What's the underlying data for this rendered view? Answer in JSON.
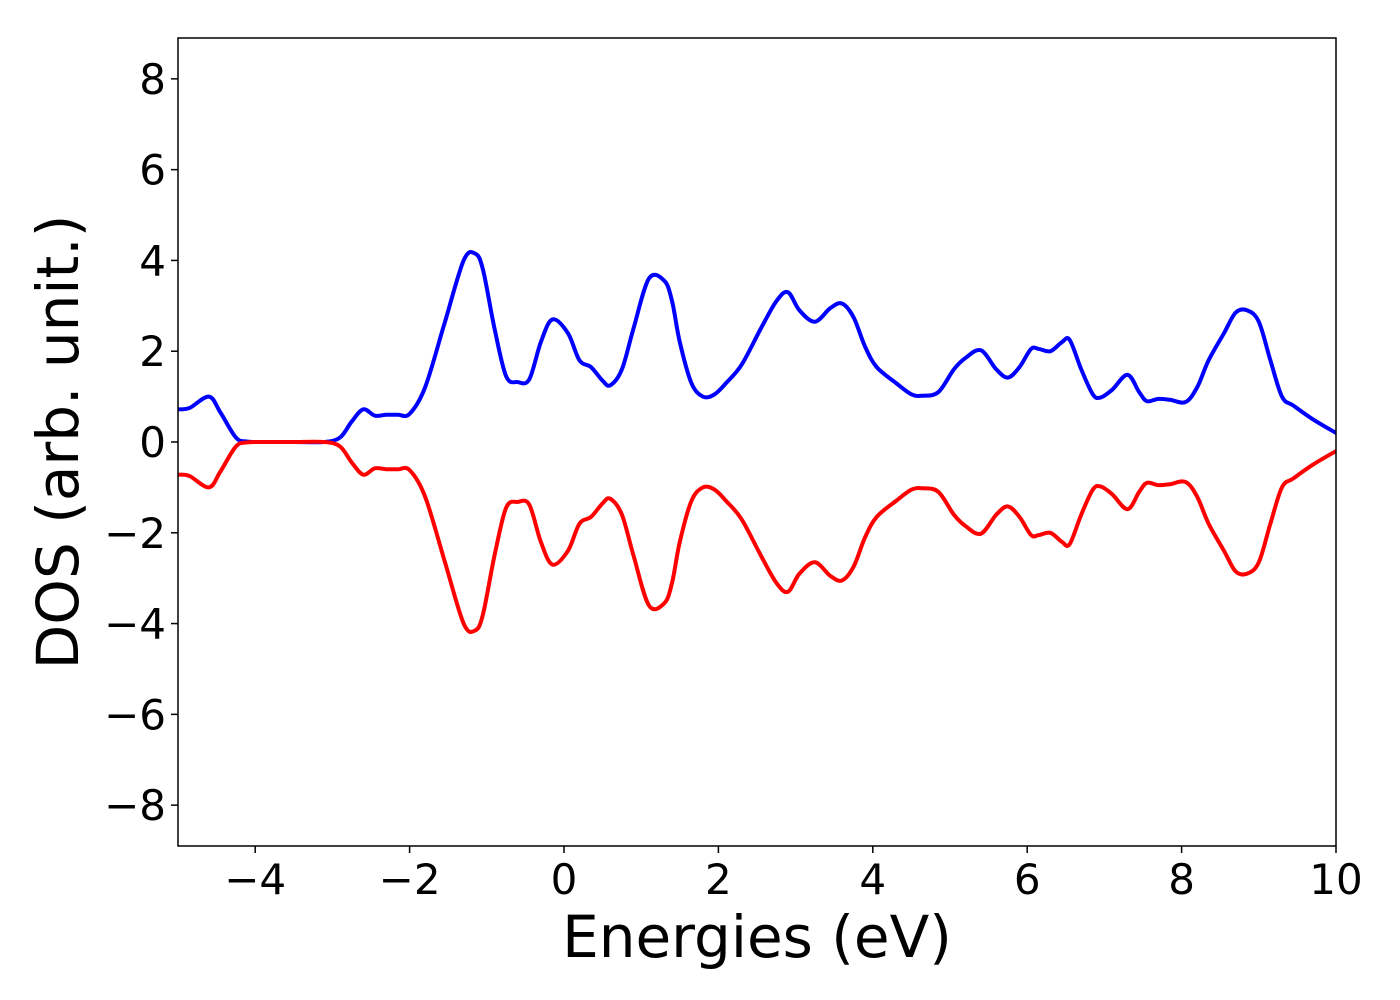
{
  "chart_data": {
    "type": "line",
    "title": "",
    "xlabel": "Energies (eV)",
    "ylabel": "DOS (arb. unit.)",
    "xlim": [
      -5,
      10
    ],
    "ylim": [
      -8.9,
      8.9
    ],
    "xticks": [
      -4,
      -2,
      0,
      2,
      4,
      6,
      8,
      10
    ],
    "yticks": [
      -8,
      -6,
      -4,
      -2,
      0,
      2,
      4,
      6,
      8
    ],
    "grid": false,
    "legend": "none",
    "series": [
      {
        "color": "#0000ff",
        "x": [
          -5.0,
          -4.85,
          -4.6,
          -4.45,
          -4.25,
          -4.1,
          -3.8,
          -3.5,
          -3.1,
          -2.9,
          -2.75,
          -2.6,
          -2.45,
          -2.3,
          -2.15,
          -2.0,
          -1.8,
          -1.55,
          -1.3,
          -1.15,
          -1.05,
          -0.9,
          -0.75,
          -0.6,
          -0.45,
          -0.3,
          -0.15,
          0.05,
          0.2,
          0.35,
          0.5,
          0.6,
          0.75,
          0.9,
          1.1,
          1.3,
          1.4,
          1.5,
          1.65,
          1.8,
          1.95,
          2.1,
          2.3,
          2.55,
          2.75,
          2.9,
          3.05,
          3.25,
          3.45,
          3.6,
          3.75,
          3.9,
          4.05,
          4.3,
          4.5,
          4.65,
          4.85,
          5.05,
          5.2,
          5.4,
          5.6,
          5.75,
          5.9,
          6.05,
          6.15,
          6.3,
          6.45,
          6.55,
          6.7,
          6.85,
          6.95,
          7.1,
          7.3,
          7.45,
          7.55,
          7.7,
          7.85,
          8.05,
          8.2,
          8.35,
          8.55,
          8.7,
          8.85,
          9.0,
          9.15,
          9.3,
          9.45,
          9.7,
          10.0
        ],
        "y": [
          0.72,
          0.75,
          1.0,
          0.65,
          0.1,
          0.01,
          0.0,
          0.0,
          0.0,
          0.1,
          0.45,
          0.72,
          0.58,
          0.6,
          0.6,
          0.62,
          1.2,
          2.6,
          4.0,
          4.15,
          3.8,
          2.5,
          1.45,
          1.32,
          1.38,
          2.2,
          2.7,
          2.4,
          1.8,
          1.65,
          1.35,
          1.25,
          1.6,
          2.5,
          3.6,
          3.55,
          3.1,
          2.2,
          1.3,
          1.0,
          1.05,
          1.3,
          1.7,
          2.5,
          3.1,
          3.3,
          2.9,
          2.65,
          2.95,
          3.05,
          2.75,
          2.1,
          1.65,
          1.3,
          1.05,
          1.02,
          1.1,
          1.6,
          1.85,
          2.02,
          1.6,
          1.42,
          1.65,
          2.05,
          2.05,
          2.0,
          2.2,
          2.25,
          1.6,
          1.05,
          0.98,
          1.15,
          1.48,
          1.1,
          0.9,
          0.95,
          0.93,
          0.88,
          1.2,
          1.8,
          2.4,
          2.85,
          2.9,
          2.65,
          1.8,
          1.0,
          0.8,
          0.5,
          0.2
        ]
      },
      {
        "color": "#ff0000",
        "x": [
          -5.0,
          -4.85,
          -4.6,
          -4.45,
          -4.25,
          -4.1,
          -3.8,
          -3.5,
          -3.1,
          -2.9,
          -2.75,
          -2.6,
          -2.45,
          -2.3,
          -2.15,
          -2.0,
          -1.8,
          -1.55,
          -1.3,
          -1.15,
          -1.05,
          -0.9,
          -0.75,
          -0.6,
          -0.45,
          -0.3,
          -0.15,
          0.05,
          0.2,
          0.35,
          0.5,
          0.6,
          0.75,
          0.9,
          1.1,
          1.3,
          1.4,
          1.5,
          1.65,
          1.8,
          1.95,
          2.1,
          2.3,
          2.55,
          2.75,
          2.9,
          3.05,
          3.25,
          3.45,
          3.6,
          3.75,
          3.9,
          4.05,
          4.3,
          4.5,
          4.65,
          4.85,
          5.05,
          5.2,
          5.4,
          5.6,
          5.75,
          5.9,
          6.05,
          6.15,
          6.3,
          6.45,
          6.55,
          6.7,
          6.85,
          6.95,
          7.1,
          7.3,
          7.45,
          7.55,
          7.7,
          7.85,
          8.05,
          8.2,
          8.35,
          8.55,
          8.7,
          8.85,
          9.0,
          9.15,
          9.3,
          9.45,
          9.7,
          10.0
        ],
        "y": [
          -0.72,
          -0.75,
          -1.0,
          -0.65,
          -0.1,
          -0.01,
          0.0,
          0.0,
          0.0,
          -0.1,
          -0.45,
          -0.72,
          -0.58,
          -0.6,
          -0.6,
          -0.62,
          -1.2,
          -2.6,
          -4.0,
          -4.15,
          -3.8,
          -2.5,
          -1.45,
          -1.32,
          -1.38,
          -2.2,
          -2.7,
          -2.4,
          -1.8,
          -1.65,
          -1.35,
          -1.25,
          -1.6,
          -2.5,
          -3.6,
          -3.55,
          -3.1,
          -2.2,
          -1.3,
          -1.0,
          -1.05,
          -1.3,
          -1.7,
          -2.5,
          -3.1,
          -3.3,
          -2.9,
          -2.65,
          -2.95,
          -3.05,
          -2.75,
          -2.1,
          -1.65,
          -1.3,
          -1.05,
          -1.02,
          -1.1,
          -1.6,
          -1.85,
          -2.02,
          -1.6,
          -1.42,
          -1.65,
          -2.05,
          -2.05,
          -2.0,
          -2.2,
          -2.25,
          -1.6,
          -1.05,
          -0.98,
          -1.15,
          -1.48,
          -1.1,
          -0.9,
          -0.95,
          -0.93,
          -0.88,
          -1.2,
          -1.8,
          -2.4,
          -2.85,
          -2.9,
          -2.65,
          -1.8,
          -1.0,
          -0.8,
          -0.5,
          -0.2
        ]
      }
    ]
  }
}
